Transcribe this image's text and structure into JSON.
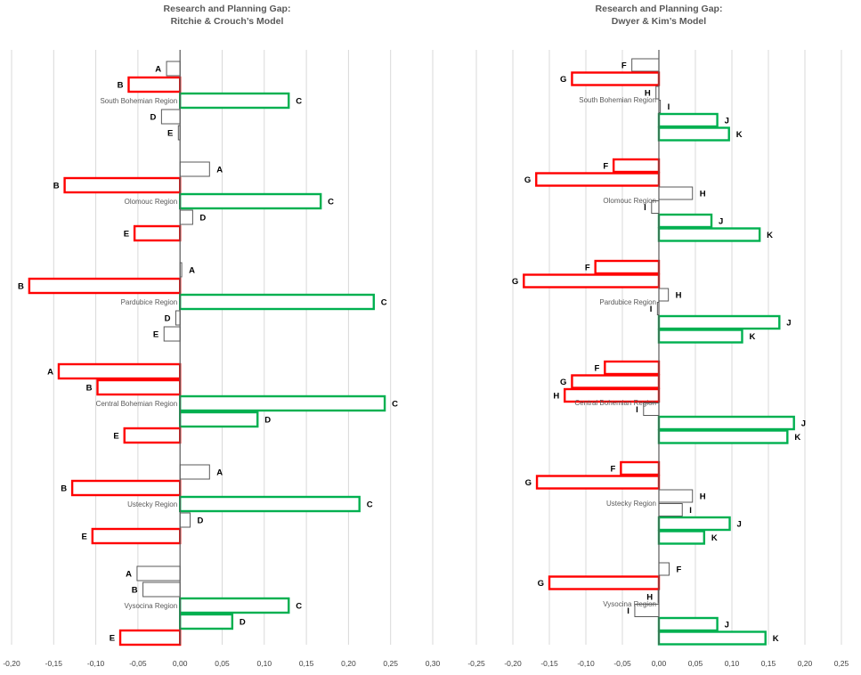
{
  "chart_data": [
    {
      "type": "bar",
      "orientation": "horizontal",
      "title": "Research and Planning Gap:",
      "subtitle": "Ritchie & Crouch’s Model",
      "xlim": [
        -0.2,
        0.3
      ],
      "xticks": [
        "-0,20",
        "-0,15",
        "-0,10",
        "-0,05",
        "0,00",
        "0,05",
        "0,10",
        "0,15",
        "0,20",
        "0,25",
        "0,30"
      ],
      "grid": true,
      "colors": {
        "negative_highlight": "#ff0000",
        "positive_highlight": "#00b050",
        "neutral": "#595959"
      },
      "groups": [
        {
          "region": "South Bohemian Region",
          "bars": [
            {
              "label": "A",
              "value": -0.016,
              "style": "neutral"
            },
            {
              "label": "B",
              "value": -0.061,
              "style": "negative_highlight"
            },
            {
              "label": "C",
              "value": 0.129,
              "style": "positive_highlight"
            },
            {
              "label": "D",
              "value": -0.022,
              "style": "neutral"
            },
            {
              "label": "E",
              "value": -0.002,
              "style": "neutral"
            }
          ]
        },
        {
          "region": "Olomouc Region",
          "bars": [
            {
              "label": "A",
              "value": 0.035,
              "style": "neutral"
            },
            {
              "label": "B",
              "value": -0.137,
              "style": "negative_highlight"
            },
            {
              "label": "C",
              "value": 0.167,
              "style": "positive_highlight"
            },
            {
              "label": "D",
              "value": 0.015,
              "style": "neutral"
            },
            {
              "label": "E",
              "value": -0.054,
              "style": "negative_highlight"
            }
          ]
        },
        {
          "region": "Pardubice Region",
          "bars": [
            {
              "label": "A",
              "value": 0.002,
              "style": "neutral"
            },
            {
              "label": "B",
              "value": -0.179,
              "style": "negative_highlight"
            },
            {
              "label": "C",
              "value": 0.23,
              "style": "positive_highlight"
            },
            {
              "label": "D",
              "value": -0.005,
              "style": "neutral"
            },
            {
              "label": "E",
              "value": -0.019,
              "style": "neutral"
            }
          ]
        },
        {
          "region": "Central Bohemian Region",
          "bars": [
            {
              "label": "A",
              "value": -0.144,
              "style": "negative_highlight"
            },
            {
              "label": "B",
              "value": -0.098,
              "style": "negative_highlight"
            },
            {
              "label": "C",
              "value": 0.243,
              "style": "positive_highlight"
            },
            {
              "label": "D",
              "value": 0.092,
              "style": "positive_highlight"
            },
            {
              "label": "E",
              "value": -0.066,
              "style": "negative_highlight"
            }
          ]
        },
        {
          "region": "Ustecky Region",
          "bars": [
            {
              "label": "A",
              "value": 0.035,
              "style": "neutral"
            },
            {
              "label": "B",
              "value": -0.128,
              "style": "negative_highlight"
            },
            {
              "label": "C",
              "value": 0.213,
              "style": "positive_highlight"
            },
            {
              "label": "D",
              "value": 0.012,
              "style": "neutral"
            },
            {
              "label": "E",
              "value": -0.104,
              "style": "negative_highlight"
            }
          ]
        },
        {
          "region": "Vysocina Region",
          "bars": [
            {
              "label": "A",
              "value": -0.051,
              "style": "neutral"
            },
            {
              "label": "B",
              "value": -0.044,
              "style": "neutral"
            },
            {
              "label": "C",
              "value": 0.129,
              "style": "positive_highlight"
            },
            {
              "label": "D",
              "value": 0.062,
              "style": "positive_highlight"
            },
            {
              "label": "E",
              "value": -0.071,
              "style": "negative_highlight"
            }
          ]
        }
      ]
    },
    {
      "type": "bar",
      "orientation": "horizontal",
      "title": "Research and Planning Gap:",
      "subtitle": "Dwyer & Kim’s Model",
      "xlim": [
        -0.25,
        0.25
      ],
      "xticks": [
        "-0,25",
        "-0,20",
        "-0,15",
        "-0,10",
        "-0,05",
        "0,00",
        "0,05",
        "0,10",
        "0,15",
        "0,20",
        "0,25"
      ],
      "grid": true,
      "colors": {
        "negative_highlight": "#ff0000",
        "positive_highlight": "#00b050",
        "neutral": "#595959"
      },
      "groups": [
        {
          "region": "South Bohemian Region",
          "bars": [
            {
              "label": "F",
              "value": -0.037,
              "style": "neutral"
            },
            {
              "label": "G",
              "value": -0.119,
              "style": "negative_highlight"
            },
            {
              "label": "H",
              "value": -0.004,
              "style": "neutral"
            },
            {
              "label": "I",
              "value": 0.002,
              "style": "neutral"
            },
            {
              "label": "J",
              "value": 0.08,
              "style": "positive_highlight"
            },
            {
              "label": "K",
              "value": 0.096,
              "style": "positive_highlight"
            }
          ]
        },
        {
          "region": "Olomouc Region",
          "bars": [
            {
              "label": "F",
              "value": -0.062,
              "style": "negative_highlight"
            },
            {
              "label": "G",
              "value": -0.168,
              "style": "negative_highlight"
            },
            {
              "label": "H",
              "value": 0.046,
              "style": "neutral"
            },
            {
              "label": "I",
              "value": -0.01,
              "style": "neutral"
            },
            {
              "label": "J",
              "value": 0.072,
              "style": "positive_highlight"
            },
            {
              "label": "K",
              "value": 0.138,
              "style": "positive_highlight"
            }
          ]
        },
        {
          "region": "Pardubice Region",
          "bars": [
            {
              "label": "F",
              "value": -0.087,
              "style": "negative_highlight"
            },
            {
              "label": "G",
              "value": -0.185,
              "style": "negative_highlight"
            },
            {
              "label": "H",
              "value": 0.013,
              "style": "neutral"
            },
            {
              "label": "I",
              "value": -0.002,
              "style": "neutral"
            },
            {
              "label": "J",
              "value": 0.165,
              "style": "positive_highlight"
            },
            {
              "label": "K",
              "value": 0.114,
              "style": "positive_highlight"
            }
          ]
        },
        {
          "region": "Central Bohemian Region",
          "bars": [
            {
              "label": "F",
              "value": -0.074,
              "style": "negative_highlight"
            },
            {
              "label": "G",
              "value": -0.119,
              "style": "negative_highlight"
            },
            {
              "label": "H",
              "value": -0.129,
              "style": "negative_highlight"
            },
            {
              "label": "I",
              "value": -0.021,
              "style": "neutral"
            },
            {
              "label": "J",
              "value": 0.185,
              "style": "positive_highlight"
            },
            {
              "label": "K",
              "value": 0.176,
              "style": "positive_highlight"
            }
          ]
        },
        {
          "region": "Ustecky Region",
          "bars": [
            {
              "label": "F",
              "value": -0.052,
              "style": "negative_highlight"
            },
            {
              "label": "G",
              "value": -0.167,
              "style": "negative_highlight"
            },
            {
              "label": "H",
              "value": 0.046,
              "style": "neutral"
            },
            {
              "label": "I",
              "value": 0.032,
              "style": "neutral"
            },
            {
              "label": "J",
              "value": 0.097,
              "style": "positive_highlight"
            },
            {
              "label": "K",
              "value": 0.062,
              "style": "positive_highlight"
            }
          ]
        },
        {
          "region": "Vysocina Region",
          "bars": [
            {
              "label": "F",
              "value": 0.014,
              "style": "neutral"
            },
            {
              "label": "G",
              "value": -0.15,
              "style": "negative_highlight"
            },
            {
              "label": "H",
              "value": -0.001,
              "style": "neutral"
            },
            {
              "label": "I",
              "value": -0.033,
              "style": "neutral"
            },
            {
              "label": "J",
              "value": 0.08,
              "style": "positive_highlight"
            },
            {
              "label": "K",
              "value": 0.146,
              "style": "positive_highlight"
            }
          ]
        }
      ]
    }
  ]
}
